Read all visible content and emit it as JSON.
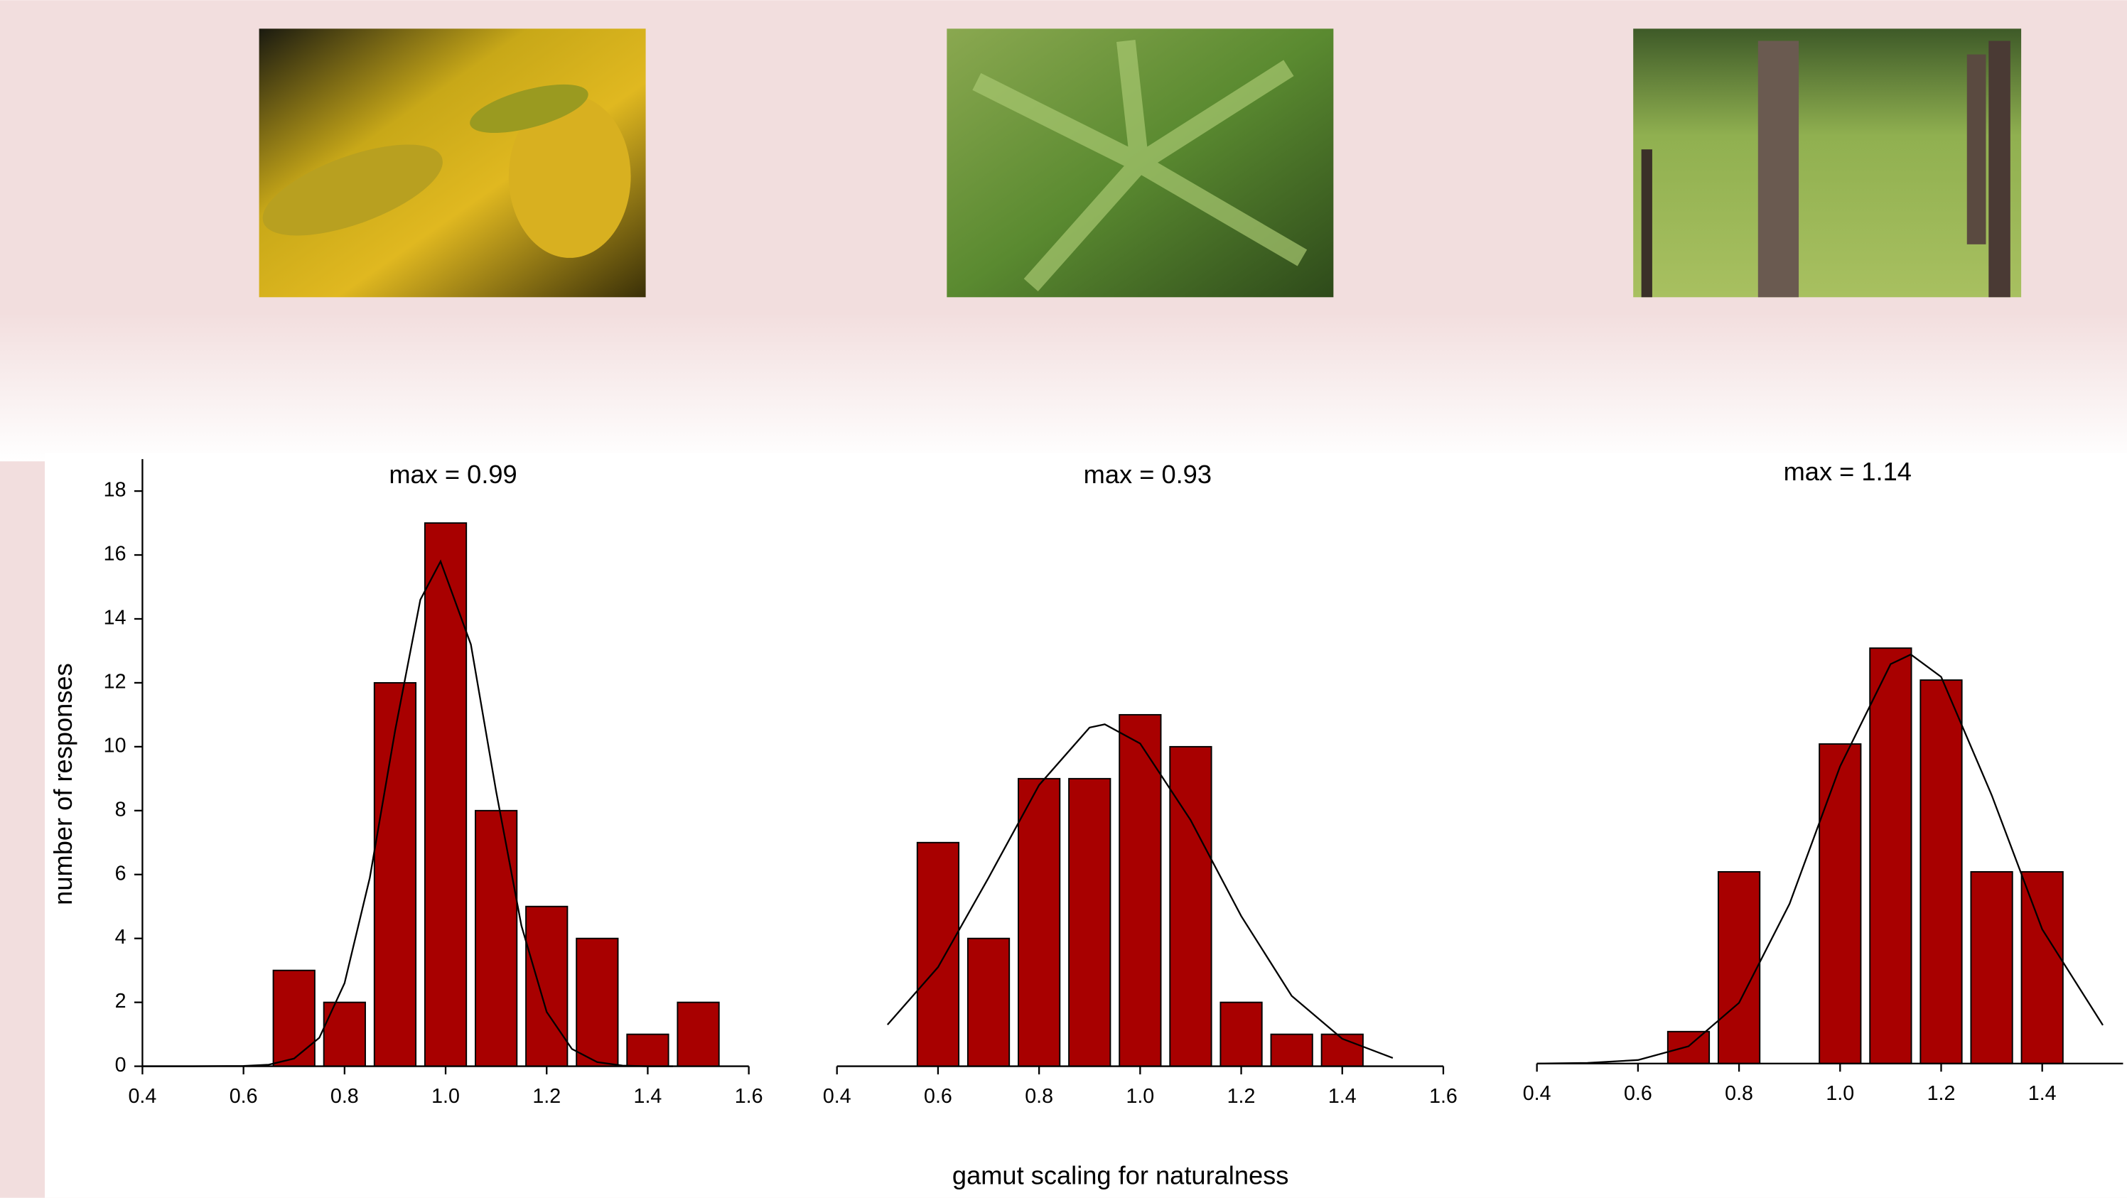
{
  "chart_data": [
    {
      "type": "histogram",
      "title": "max = 0.99",
      "ylabel": "number of responses",
      "bins": [
        0.65,
        0.75,
        0.85,
        0.95,
        1.05,
        1.15,
        1.25,
        1.35,
        1.45,
        1.55
      ],
      "values": [
        3,
        2,
        12,
        17,
        8,
        5,
        4,
        1,
        2
      ],
      "color": "#a80000",
      "fit": {
        "x": [
          0.4,
          0.5,
          0.6,
          0.65,
          0.7,
          0.75,
          0.8,
          0.85,
          0.9,
          0.95,
          0.99,
          1.05,
          1.1,
          1.15,
          1.2,
          1.25,
          1.3,
          1.35,
          1.4,
          1.45
        ],
        "y": [
          0,
          0,
          0.01,
          0.05,
          0.24,
          0.89,
          2.6,
          5.9,
          10.5,
          14.6,
          15.8,
          13.2,
          8.6,
          4.4,
          1.7,
          0.54,
          0.13,
          0.02,
          0,
          0
        ]
      },
      "xlim": [
        0.4,
        1.6
      ],
      "xticks": [
        0.4,
        0.6,
        0.8,
        {
          "value": 1,
          "label": "1.0"
        },
        1.2,
        1.4,
        1.6
      ],
      "ylim": [
        0,
        19
      ],
      "yticks": [
        0,
        2,
        4,
        6,
        8,
        10,
        12,
        14,
        16,
        18
      ]
    },
    {
      "type": "histogram",
      "title": "max = 0.93",
      "xlabel": "gamut scaling for naturalness",
      "bins": [
        0.55,
        0.65,
        0.75,
        0.85,
        0.95,
        1.05,
        1.15,
        1.25,
        1.35,
        1.45
      ],
      "values": [
        7,
        4,
        9,
        9,
        11,
        10,
        2,
        1,
        1
      ],
      "color": "#a80000",
      "fit": {
        "x": [
          0.5,
          0.6,
          0.7,
          0.8,
          0.9,
          0.93,
          1.0,
          1.1,
          1.2,
          1.3,
          1.4,
          1.5
        ],
        "y": [
          1.3,
          3.1,
          5.9,
          8.8,
          10.6,
          10.7,
          10.1,
          7.7,
          4.7,
          2.2,
          0.86,
          0.26
        ]
      },
      "xlim": [
        0.4,
        1.6
      ],
      "xticks": [
        0.4,
        0.6,
        0.8,
        {
          "value": 1,
          "label": "1.0"
        },
        1.2,
        1.4,
        1.6
      ],
      "ylim": [
        0,
        19
      ]
    },
    {
      "type": "histogram",
      "title": "max = 1.14",
      "bins": [
        0.65,
        0.75,
        0.85,
        0.95,
        1.05,
        1.15,
        1.25,
        1.35,
        1.45
      ],
      "values": [
        1,
        6,
        0,
        10,
        13,
        12,
        6,
        6
      ],
      "color": "#a80000",
      "fit": {
        "x": [
          0.4,
          0.5,
          0.6,
          0.7,
          0.8,
          0.9,
          1.0,
          1.1,
          1.14,
          1.2,
          1.3,
          1.4,
          1.52
        ],
        "y": [
          0,
          0.02,
          0.11,
          0.54,
          1.9,
          5.0,
          9.3,
          12.5,
          12.8,
          12.1,
          8.4,
          4.2,
          1.2
        ]
      },
      "xlim": [
        0.4,
        1.56
      ],
      "xticks": [
        0.4,
        0.6,
        0.8,
        {
          "value": 1,
          "label": "1.0"
        },
        1.2,
        1.4
      ],
      "ylim": [
        0,
        19
      ]
    }
  ]
}
